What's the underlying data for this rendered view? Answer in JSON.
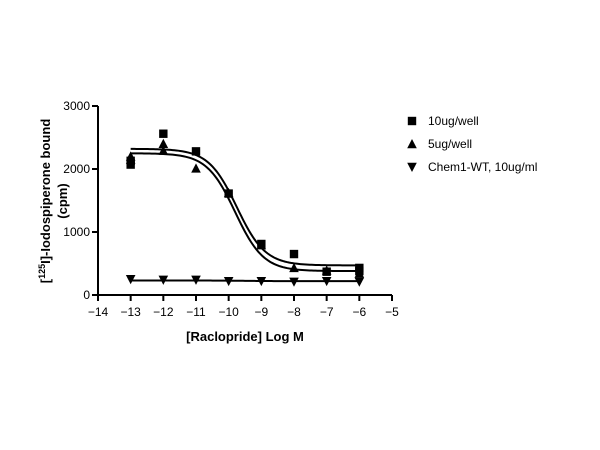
{
  "chart_data": {
    "type": "scatter",
    "title": "",
    "xlabel": "[Raclopride] Log M",
    "ylabel_parts": {
      "open": "[",
      "sup": "125",
      "rest": "I]-Iodospiperone bound"
    },
    "ylabel_line2": "(cpm)",
    "xlim": [
      -14,
      -5
    ],
    "ylim": [
      0,
      3000
    ],
    "x_ticks": [
      -14,
      -13,
      -12,
      -11,
      -10,
      -9,
      -8,
      -7,
      -6,
      -5
    ],
    "y_ticks": [
      0,
      1000,
      2000,
      3000
    ],
    "grid": false,
    "legend_position": "right",
    "series": [
      {
        "name": "10ug/well",
        "marker": "square",
        "x": [
          -13,
          -13,
          -12,
          -11,
          -10,
          -9,
          -8,
          -7,
          -6,
          -6
        ],
        "y": [
          2070,
          2130,
          2560,
          2280,
          1610,
          810,
          650,
          370,
          430,
          380
        ],
        "fit": {
          "top": 2320,
          "bottom": 470,
          "logEC50": -9.75,
          "hill": 1
        }
      },
      {
        "name": "5ug/well",
        "marker": "triangle-up",
        "x": [
          -13,
          -13,
          -12,
          -12,
          -11,
          -10,
          -9,
          -8,
          -7,
          -6
        ],
        "y": [
          2150,
          2200,
          2290,
          2400,
          2010,
          1620,
          790,
          430,
          390,
          340
        ],
        "fit": {
          "top": 2250,
          "bottom": 380,
          "logEC50": -9.8,
          "hill": 1
        }
      },
      {
        "name": "Chem1-WT, 10ug/ml",
        "marker": "triangle-down",
        "x": [
          -13,
          -12,
          -11,
          -10,
          -9,
          -8,
          -7,
          -6
        ],
        "y": [
          250,
          240,
          240,
          220,
          220,
          210,
          220,
          210
        ],
        "fit": {
          "top": 230,
          "bottom": 220,
          "logEC50": -9.5,
          "hill": 1
        }
      }
    ]
  }
}
